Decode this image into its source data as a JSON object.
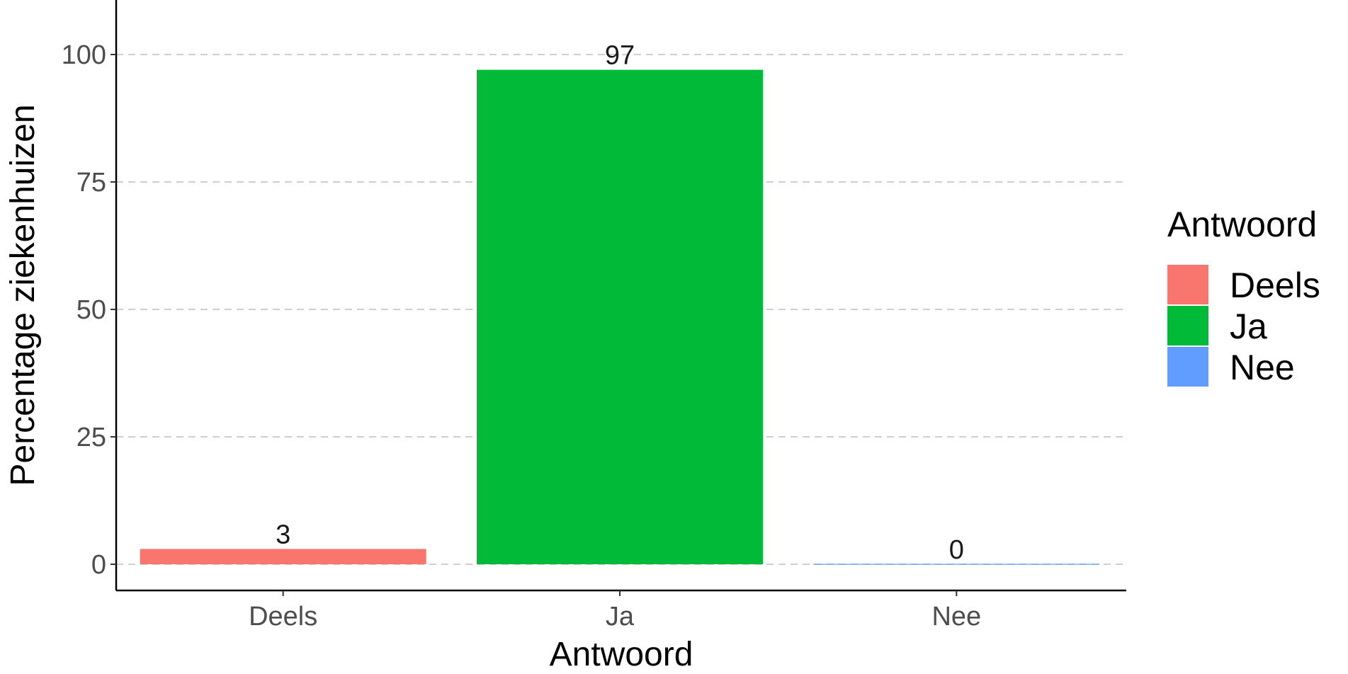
{
  "chart_data": {
    "type": "bar",
    "title": "",
    "xlabel": "Antwoord",
    "ylabel": "Percentage ziekenhuizen",
    "categories": [
      "Deels",
      "Ja",
      "Nee"
    ],
    "values": [
      3,
      97,
      0
    ],
    "value_labels": [
      "3",
      "97",
      "0"
    ],
    "colors": [
      "#F8766D",
      "#00BA38",
      "#619CFF"
    ],
    "ylim": [
      0,
      110
    ],
    "yticks": [
      0,
      25,
      50,
      75,
      100
    ],
    "ytick_labels": [
      "0",
      "25",
      "50",
      "75",
      "100"
    ],
    "grid": "horizontal dashed",
    "legend": {
      "title": "Antwoord",
      "position": "right",
      "entries": [
        "Deels",
        "Ja",
        "Nee"
      ]
    }
  }
}
